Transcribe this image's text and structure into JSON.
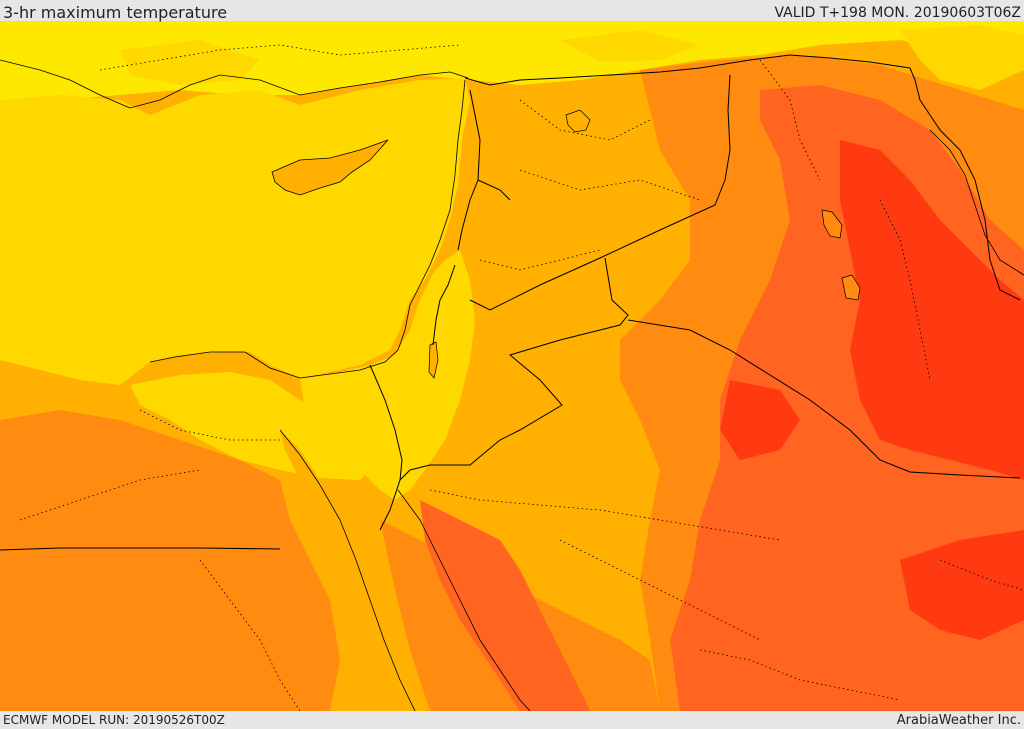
{
  "header": {
    "title": "3-hr maximum temperature",
    "valid_label": "VALID T+198 MON. 20190603T06Z"
  },
  "footer": {
    "model_run": "ECMWF MODEL RUN: 20190526T00Z",
    "brand": "ArabiaWeather Inc."
  },
  "map": {
    "field": "3-hr maximum temperature",
    "colors": {
      "sea": "#ffd800",
      "warm_1": "#ffd800",
      "warm_2": "#ffb000",
      "warm_3": "#ff8c10",
      "hot": "#ff6420",
      "very_hot": "#ff3a10",
      "cool_north": "#ffe800",
      "borders": "#000000"
    }
  }
}
